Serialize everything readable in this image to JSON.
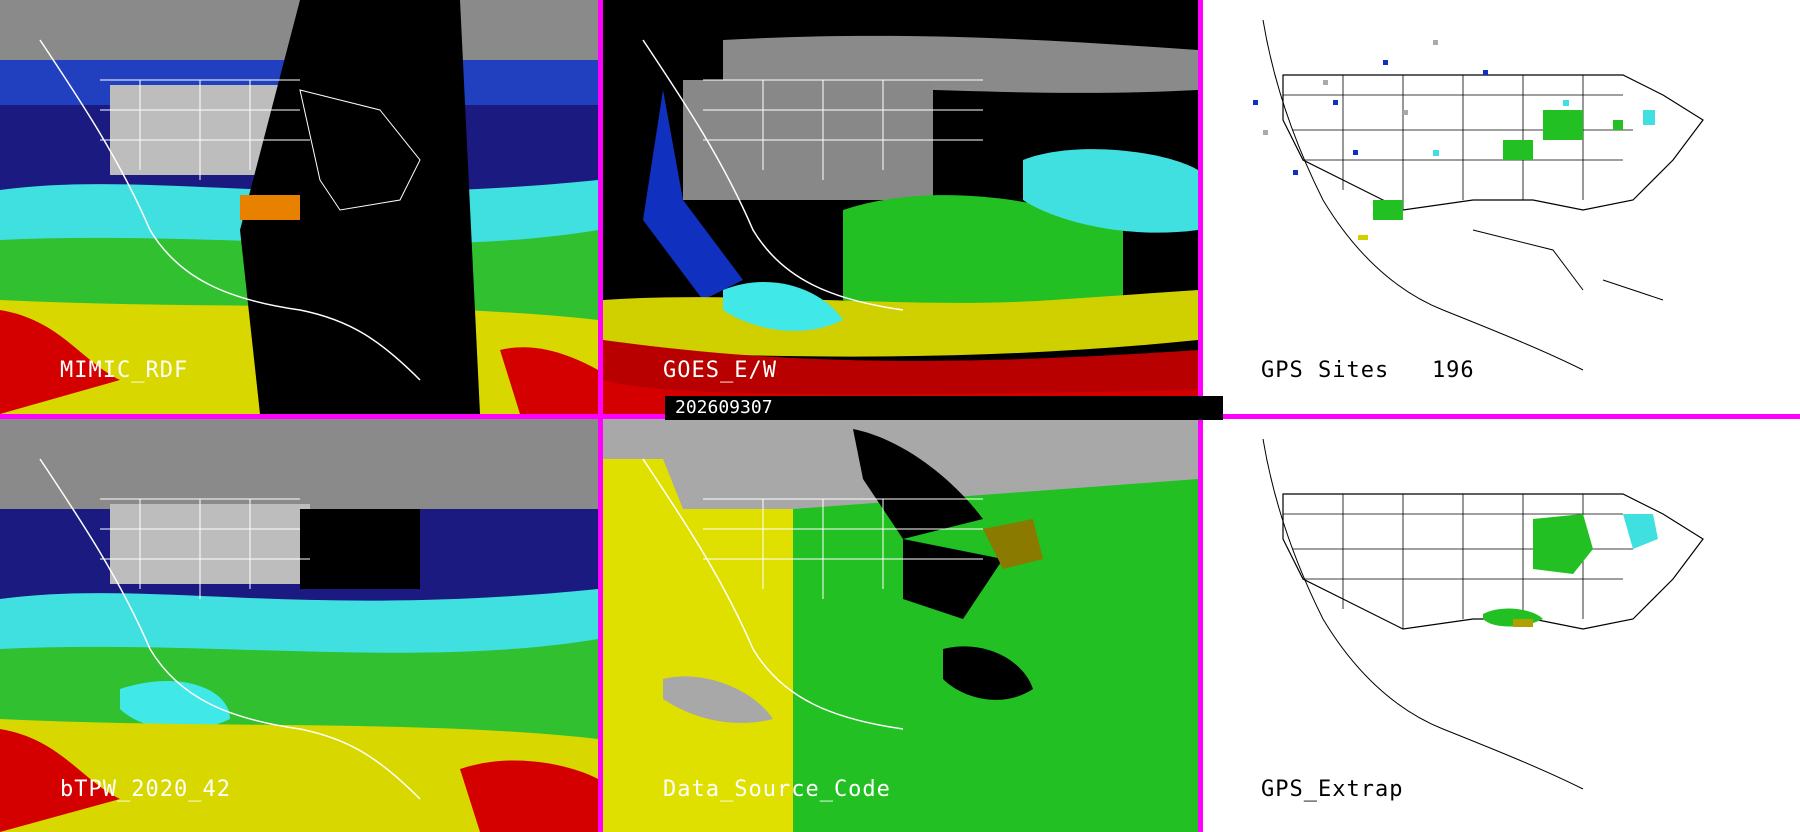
{
  "timestamp": "202609307",
  "panels": [
    {
      "label": "MIMIC_RDF"
    },
    {
      "label": "GOES_E/W"
    },
    {
      "label": "GPS Sites   196"
    },
    {
      "label": "bTPW_2020_42"
    },
    {
      "label": "Data_Source_Code"
    },
    {
      "label": "GPS_Extrap"
    }
  ],
  "colors": {
    "divider": "#ff00ff",
    "red": "#d40000",
    "yellow": "#e0e000",
    "green": "#22c022",
    "cyan": "#40e8e8",
    "blue": "#1030c0",
    "navy": "#0a0a70",
    "gray": "#9a9a9a"
  }
}
